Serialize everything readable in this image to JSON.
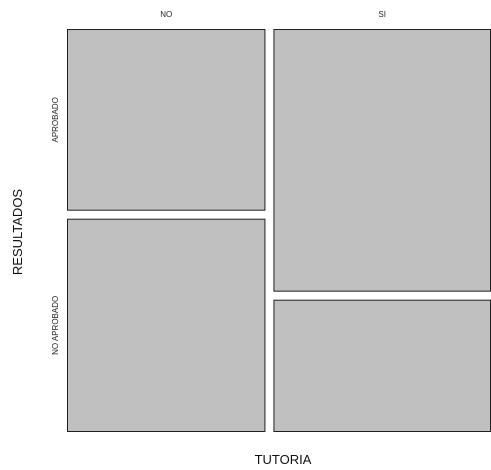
{
  "chart_data": {
    "type": "mosaic",
    "xlabel": "TUTORIA",
    "ylabel": "RESULTADOS",
    "x_categories": [
      "NO",
      "SI"
    ],
    "y_categories": [
      "APROBADO",
      "NO APROBADO"
    ],
    "column_proportions": [
      0.477,
      0.523
    ],
    "cells": [
      {
        "x": "NO",
        "y": "APROBADO",
        "proportion_within_column": 0.46
      },
      {
        "x": "NO",
        "y": "NO APROBADO",
        "proportion_within_column": 0.54
      },
      {
        "x": "SI",
        "y": "APROBADO",
        "proportion_within_column": 0.665
      },
      {
        "x": "SI",
        "y": "NO APROBADO",
        "proportion_within_column": 0.335
      }
    ],
    "fill_color": "#c0c0c0",
    "stroke_color": "#202020"
  }
}
